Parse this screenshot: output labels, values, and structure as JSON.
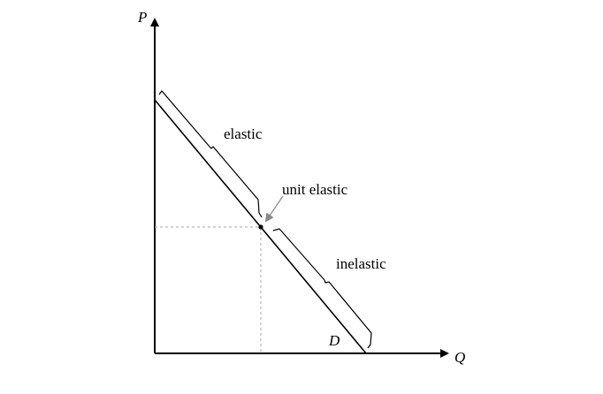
{
  "diagram": {
    "axes": {
      "y_label": "P",
      "x_label": "Q"
    },
    "curve_label": "D",
    "regions": {
      "elastic": "elastic",
      "unit_elastic": "unit elastic",
      "inelastic": "inelastic"
    },
    "colors": {
      "line": "#000000",
      "guide": "#aaaaaa",
      "arrow": "#888888"
    }
  }
}
